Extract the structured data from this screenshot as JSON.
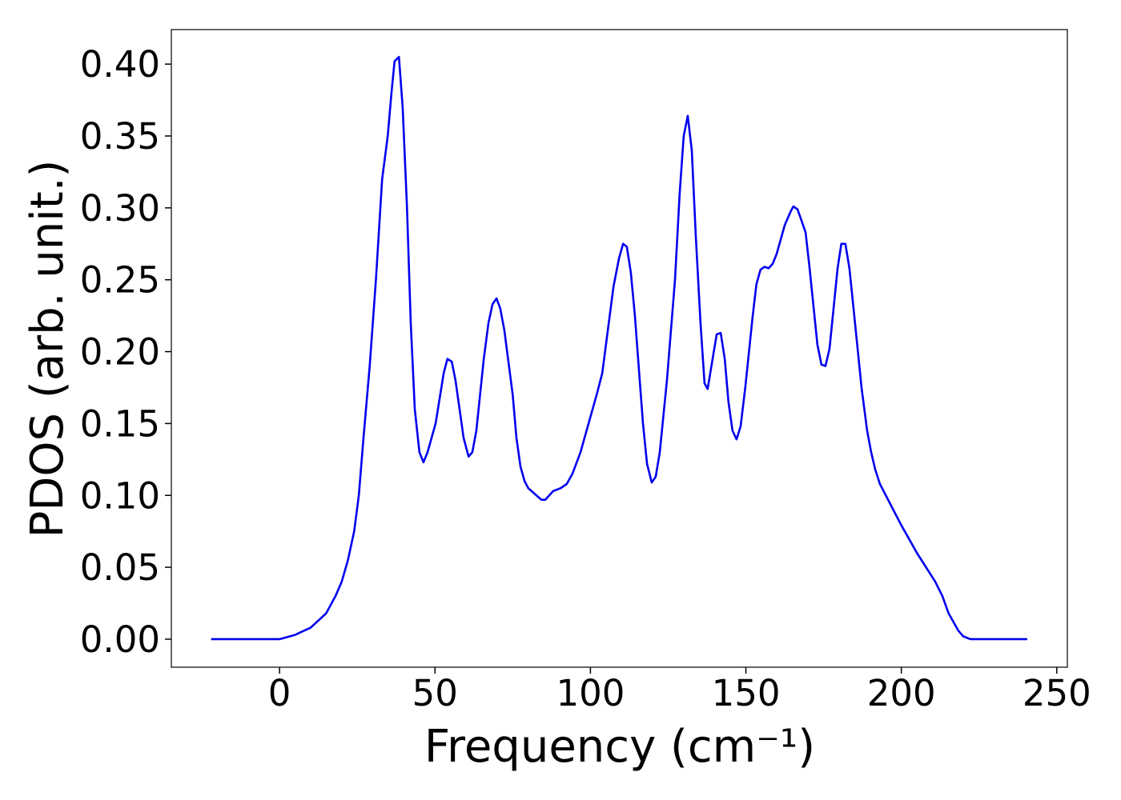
{
  "chart_data": {
    "type": "line",
    "xlabel": "Frequency (cm⁻¹)",
    "ylabel": "PDOS (arb. unit.)",
    "xlim": [
      -34.8,
      253.4
    ],
    "ylim": [
      -0.0195,
      0.424
    ],
    "xticks": [
      0,
      50,
      100,
      150,
      200,
      250
    ],
    "yticks": [
      {
        "value": 0,
        "label": "0.00"
      },
      0.05,
      {
        "value": 0.1,
        "label": "0.10"
      },
      0.15,
      {
        "value": 0.2,
        "label": "0.20"
      },
      0.25,
      {
        "value": 0.3,
        "label": "0.30"
      },
      0.35,
      {
        "value": 0.4,
        "label": "0.40"
      }
    ],
    "grid": false,
    "series": [
      {
        "color": "#0000ee",
        "x": [
          -22,
          0,
          5,
          10,
          15,
          18,
          20,
          22,
          24,
          25.5,
          27,
          29,
          31,
          33,
          34.8,
          36,
          37,
          38.4,
          39.6,
          41,
          42.2,
          43.5,
          45,
          46.3,
          47.6,
          48.9,
          50.2,
          52.8,
          54,
          55.4,
          56.6,
          59.2,
          60.8,
          62,
          63.3,
          65.7,
          67.2,
          68.5,
          69.8,
          71,
          72.3,
          75,
          76.2,
          77.5,
          78.8,
          80,
          84.2,
          85.5,
          88,
          90.4,
          92.4,
          94.2,
          96.8,
          99.4,
          102,
          103.8,
          105.3,
          107.4,
          109.2,
          110.5,
          111.7,
          113,
          114.3,
          116.9,
          118.2,
          119.7,
          121,
          122.3,
          124.6,
          127.2,
          128.7,
          130,
          131.3,
          132.6,
          133.9,
          135.4,
          136.7,
          137.7,
          139.3,
          140.6,
          141.9,
          143.2,
          144.4,
          145.7,
          147,
          148.3,
          149.8,
          152.2,
          153.4,
          154.7,
          156,
          157.3,
          158.6,
          159.9,
          162.5,
          164.5,
          165.3,
          166.6,
          167.6,
          169.2,
          170.4,
          173,
          174.3,
          175.6,
          176.9,
          179.5,
          180.7,
          182,
          183.3,
          185.1,
          187.2,
          189,
          190.3,
          191.6,
          193.1,
          199.8,
          205,
          210.9,
          213.2,
          215.2,
          218.3,
          219.9,
          222.2,
          240.5
        ],
        "values": [
          0,
          0,
          0.003,
          0.008,
          0.018,
          0.03,
          0.04,
          0.055,
          0.075,
          0.1,
          0.14,
          0.19,
          0.25,
          0.32,
          0.35,
          0.38,
          0.402,
          0.405,
          0.37,
          0.3,
          0.22,
          0.16,
          0.13,
          0.123,
          0.13,
          0.14,
          0.15,
          0.185,
          0.195,
          0.193,
          0.18,
          0.14,
          0.127,
          0.13,
          0.145,
          0.195,
          0.22,
          0.233,
          0.237,
          0.23,
          0.215,
          0.17,
          0.14,
          0.12,
          0.11,
          0.105,
          0.097,
          0.097,
          0.103,
          0.105,
          0.108,
          0.115,
          0.13,
          0.15,
          0.17,
          0.185,
          0.21,
          0.245,
          0.265,
          0.275,
          0.273,
          0.255,
          0.225,
          0.15,
          0.122,
          0.109,
          0.113,
          0.13,
          0.18,
          0.25,
          0.31,
          0.35,
          0.364,
          0.34,
          0.28,
          0.22,
          0.178,
          0.174,
          0.195,
          0.212,
          0.213,
          0.195,
          0.165,
          0.145,
          0.139,
          0.148,
          0.175,
          0.225,
          0.247,
          0.257,
          0.259,
          0.258,
          0.261,
          0.268,
          0.288,
          0.298,
          0.301,
          0.299,
          0.293,
          0.283,
          0.26,
          0.205,
          0.191,
          0.19,
          0.202,
          0.258,
          0.275,
          0.275,
          0.258,
          0.22,
          0.175,
          0.145,
          0.13,
          0.118,
          0.108,
          0.08,
          0.06,
          0.04,
          0.03,
          0.018,
          0.006,
          0.002,
          0,
          0
        ]
      }
    ]
  }
}
